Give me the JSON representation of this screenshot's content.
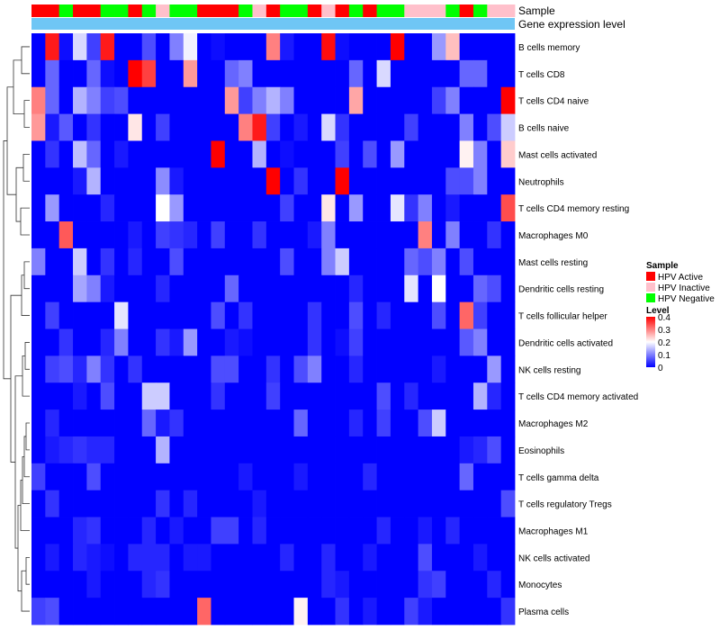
{
  "chart_data": {
    "type": "heatmap",
    "title": "",
    "annotation_tracks": [
      "Sample",
      "Gene expression level"
    ],
    "sample_groups": [
      "HPV Active",
      "HPV Active",
      "HPV Negative",
      "HPV Active",
      "HPV Active",
      "HPV Negative",
      "HPV Negative",
      "HPV Active",
      "HPV Negative",
      "HPV Inactive",
      "HPV Negative",
      "HPV Negative",
      "HPV Active",
      "HPV Active",
      "HPV Active",
      "HPV Negative",
      "HPV Inactive",
      "HPV Active",
      "HPV Negative",
      "HPV Negative",
      "HPV Active",
      "HPV Inactive",
      "HPV Active",
      "HPV Negative",
      "HPV Active",
      "HPV Negative",
      "HPV Negative",
      "HPV Inactive",
      "HPV Inactive",
      "HPV Inactive",
      "HPV Negative",
      "HPV Active",
      "HPV Negative",
      "HPV Inactive",
      "HPV Inactive"
    ],
    "rows": [
      "B cells memory",
      "T cells CD8",
      "T cells CD4 naive",
      "B cells naive",
      "Mast cells activated",
      "Neutrophils",
      "T cells CD4 memory resting",
      "Macrophages M0",
      "Mast cells resting",
      "Dendritic cells resting",
      "T cells follicular helper",
      "Dendritic cells activated",
      "NK cells resting",
      "T cells CD4 memory activated",
      "Macrophages M2",
      "Eosinophils",
      "T cells gamma delta",
      "T cells regulatory  Tregs",
      "Macrophages M1",
      "NK cells activated",
      "Monocytes",
      "Plasma cells"
    ],
    "values": [
      [
        0.0,
        0.38,
        0.01,
        0.17,
        0.05,
        0.38,
        0.0,
        0.0,
        0.06,
        0.0,
        0.1,
        0.19,
        0.0,
        0.01,
        0.0,
        0.0,
        0.0,
        0.3,
        0.02,
        0.0,
        0.0,
        0.39,
        0.01,
        0.0,
        0.0,
        0.0,
        0.4,
        0.0,
        0.0,
        0.12,
        0.25,
        0.0,
        0.0,
        0.0,
        0.0
      ],
      [
        0.0,
        0.08,
        0.0,
        0.0,
        0.08,
        0.01,
        0.0,
        0.4,
        0.35,
        0.0,
        0.0,
        0.28,
        0.0,
        0.0,
        0.08,
        0.1,
        0.0,
        0.0,
        0.0,
        0.0,
        0.0,
        0.0,
        0.0,
        0.08,
        0.0,
        0.17,
        0.0,
        0.0,
        0.0,
        0.0,
        0.0,
        0.08,
        0.08,
        0.0,
        0.0
      ],
      [
        0.3,
        0.08,
        0.0,
        0.14,
        0.1,
        0.05,
        0.06,
        0.0,
        0.0,
        0.0,
        0.0,
        0.0,
        0.0,
        0.0,
        0.28,
        0.05,
        0.1,
        0.14,
        0.1,
        0.0,
        0.0,
        0.0,
        0.0,
        0.27,
        0.0,
        0.0,
        0.0,
        0.0,
        0.0,
        0.05,
        0.1,
        0.0,
        0.0,
        0.0,
        0.4
      ],
      [
        0.28,
        0.02,
        0.07,
        0.0,
        0.04,
        0.0,
        0.0,
        0.22,
        0.0,
        0.05,
        0.0,
        0.0,
        0.0,
        0.0,
        0.0,
        0.3,
        0.38,
        0.05,
        0.0,
        0.02,
        0.0,
        0.17,
        0.04,
        0.0,
        0.0,
        0.0,
        0.0,
        0.05,
        0.0,
        0.0,
        0.0,
        0.1,
        0.0,
        0.06,
        0.16
      ],
      [
        0.0,
        0.04,
        0.0,
        0.15,
        0.08,
        0.0,
        0.02,
        0.0,
        0.0,
        0.0,
        0.0,
        0.0,
        0.0,
        0.41,
        0.0,
        0.0,
        0.14,
        0.0,
        0.01,
        0.0,
        0.0,
        0.0,
        0.05,
        0.0,
        0.06,
        0.0,
        0.12,
        0.0,
        0.0,
        0.0,
        0.0,
        0.21,
        0.1,
        0.0,
        0.24
      ],
      [
        0.0,
        0.0,
        0.0,
        0.02,
        0.14,
        0.0,
        0.0,
        0.0,
        0.0,
        0.11,
        0.02,
        0.0,
        0.0,
        0.0,
        0.0,
        0.0,
        0.0,
        0.41,
        0.0,
        0.04,
        0.0,
        0.0,
        0.42,
        0.0,
        0.0,
        0.0,
        0.0,
        0.0,
        0.0,
        0.0,
        0.06,
        0.06,
        0.1,
        0.0,
        0.0
      ],
      [
        0.0,
        0.12,
        0.0,
        0.0,
        0.0,
        0.03,
        0.0,
        0.0,
        0.0,
        0.2,
        0.12,
        0.0,
        0.0,
        0.0,
        0.0,
        0.0,
        0.0,
        0.0,
        0.05,
        0.0,
        0.0,
        0.22,
        0.0,
        0.12,
        0.0,
        0.0,
        0.18,
        0.04,
        0.1,
        0.0,
        0.02,
        0.0,
        0.0,
        0.0,
        0.34
      ],
      [
        0.0,
        0.0,
        0.33,
        0.0,
        0.0,
        0.0,
        0.0,
        0.02,
        0.0,
        0.05,
        0.04,
        0.03,
        0.0,
        0.05,
        0.0,
        0.0,
        0.04,
        0.0,
        0.0,
        0.0,
        0.02,
        0.1,
        0.0,
        0.0,
        0.0,
        0.0,
        0.0,
        0.0,
        0.3,
        0.0,
        0.1,
        0.0,
        0.0,
        0.04,
        0.0
      ],
      [
        0.1,
        0.0,
        0.0,
        0.16,
        0.0,
        0.04,
        0.0,
        0.03,
        0.0,
        0.0,
        0.06,
        0.0,
        0.0,
        0.0,
        0.0,
        0.0,
        0.0,
        0.0,
        0.06,
        0.0,
        0.0,
        0.1,
        0.16,
        0.0,
        0.0,
        0.0,
        0.0,
        0.08,
        0.06,
        0.1,
        0.0,
        0.06,
        0.0,
        0.0,
        0.0
      ],
      [
        0.0,
        0.0,
        0.0,
        0.13,
        0.1,
        0.02,
        0.0,
        0.0,
        0.0,
        0.03,
        0.0,
        0.0,
        0.0,
        0.0,
        0.08,
        0.0,
        0.0,
        0.0,
        0.0,
        0.0,
        0.0,
        0.0,
        0.0,
        0.03,
        0.0,
        0.0,
        0.0,
        0.18,
        0.0,
        0.2,
        0.0,
        0.0,
        0.08,
        0.06,
        0.0
      ],
      [
        0.0,
        0.05,
        0.0,
        0.0,
        0.0,
        0.0,
        0.18,
        0.0,
        0.0,
        0.0,
        0.0,
        0.0,
        0.0,
        0.06,
        0.0,
        0.04,
        0.0,
        0.0,
        0.0,
        0.0,
        0.04,
        0.0,
        0.0,
        0.06,
        0.0,
        0.03,
        0.0,
        0.0,
        0.0,
        0.06,
        0.0,
        0.32,
        0.05,
        0.0,
        0.0
      ],
      [
        0.0,
        0.0,
        0.04,
        0.0,
        0.0,
        0.03,
        0.1,
        0.0,
        0.0,
        0.04,
        0.02,
        0.12,
        0.0,
        0.0,
        0.02,
        0.01,
        0.0,
        0.0,
        0.0,
        0.0,
        0.04,
        0.0,
        0.01,
        0.05,
        0.0,
        0.0,
        0.0,
        0.0,
        0.0,
        0.0,
        0.0,
        0.07,
        0.1,
        0.0,
        0.0
      ],
      [
        0.0,
        0.05,
        0.06,
        0.03,
        0.1,
        0.04,
        0.0,
        0.04,
        0.0,
        0.0,
        0.0,
        0.0,
        0.0,
        0.06,
        0.06,
        0.0,
        0.0,
        0.04,
        0.0,
        0.06,
        0.1,
        0.0,
        0.0,
        0.03,
        0.0,
        0.0,
        0.0,
        0.0,
        0.0,
        0.02,
        0.0,
        0.0,
        0.0,
        0.12,
        0.0
      ],
      [
        0.0,
        0.0,
        0.0,
        0.02,
        0.0,
        0.06,
        0.0,
        0.0,
        0.16,
        0.16,
        0.0,
        0.0,
        0.0,
        0.04,
        0.0,
        0.0,
        0.0,
        0.05,
        0.0,
        0.0,
        0.0,
        0.0,
        0.0,
        0.0,
        0.0,
        0.06,
        0.0,
        0.03,
        0.0,
        0.0,
        0.0,
        0.0,
        0.14,
        0.03,
        0.0
      ],
      [
        0.0,
        0.03,
        0.0,
        0.0,
        0.0,
        0.0,
        0.0,
        0.0,
        0.08,
        0.02,
        0.04,
        0.0,
        0.0,
        0.0,
        0.0,
        0.0,
        0.0,
        0.0,
        0.0,
        0.08,
        0.0,
        0.0,
        0.0,
        0.03,
        0.0,
        0.05,
        0.0,
        0.0,
        0.06,
        0.16,
        0.0,
        0.0,
        0.0,
        0.0,
        0.0
      ],
      [
        0.0,
        0.02,
        0.03,
        0.04,
        0.03,
        0.03,
        0.0,
        0.0,
        0.0,
        0.14,
        0.0,
        0.0,
        0.0,
        0.0,
        0.0,
        0.0,
        0.0,
        0.0,
        0.0,
        0.0,
        0.0,
        0.0,
        0.0,
        0.0,
        0.0,
        0.0,
        0.0,
        0.0,
        0.0,
        0.0,
        0.0,
        0.02,
        0.03,
        0.06,
        0.0
      ],
      [
        0.05,
        0.0,
        0.0,
        0.0,
        0.06,
        0.0,
        0.0,
        0.0,
        0.0,
        0.0,
        0.0,
        0.0,
        0.0,
        0.0,
        0.0,
        0.02,
        0.0,
        0.0,
        0.0,
        0.02,
        0.0,
        0.0,
        0.0,
        0.0,
        0.03,
        0.0,
        0.0,
        0.0,
        0.0,
        0.0,
        0.0,
        0.08,
        0.0,
        0.0,
        0.0
      ],
      [
        0.0,
        0.04,
        0.0,
        0.0,
        0.0,
        0.0,
        0.0,
        0.0,
        0.0,
        0.04,
        0.0,
        0.03,
        0.0,
        0.0,
        0.0,
        0.0,
        0.02,
        0.0,
        0.0,
        0.0,
        0.0,
        0.0,
        0.0,
        0.0,
        0.0,
        0.0,
        0.0,
        0.0,
        0.0,
        0.0,
        0.0,
        0.0,
        0.0,
        0.0,
        0.06
      ],
      [
        0.0,
        0.0,
        0.0,
        0.03,
        0.04,
        0.0,
        0.0,
        0.0,
        0.03,
        0.0,
        0.02,
        0.0,
        0.0,
        0.05,
        0.05,
        0.0,
        0.03,
        0.0,
        0.0,
        0.0,
        0.0,
        0.0,
        0.0,
        0.0,
        0.0,
        0.03,
        0.0,
        0.0,
        0.02,
        0.0,
        0.03,
        0.0,
        0.0,
        0.0,
        0.0
      ],
      [
        0.0,
        0.02,
        0.0,
        0.03,
        0.02,
        0.01,
        0.0,
        0.03,
        0.03,
        0.03,
        0.0,
        0.02,
        0.02,
        0.0,
        0.0,
        0.0,
        0.0,
        0.0,
        0.03,
        0.0,
        0.0,
        0.03,
        0.0,
        0.0,
        0.02,
        0.0,
        0.0,
        0.0,
        0.06,
        0.0,
        0.0,
        0.0,
        0.02,
        0.0,
        0.0
      ],
      [
        0.0,
        0.0,
        0.0,
        0.0,
        0.02,
        0.0,
        0.0,
        0.0,
        0.03,
        0.04,
        0.0,
        0.0,
        0.0,
        0.0,
        0.0,
        0.0,
        0.0,
        0.0,
        0.0,
        0.0,
        0.0,
        0.03,
        0.02,
        0.0,
        0.0,
        0.0,
        0.0,
        0.0,
        0.04,
        0.05,
        0.0,
        0.0,
        0.0,
        0.03,
        0.0
      ],
      [
        0.05,
        0.06,
        0.0,
        0.0,
        0.0,
        0.0,
        0.0,
        0.0,
        0.0,
        0.0,
        0.0,
        0.0,
        0.32,
        0.0,
        0.0,
        0.0,
        0.0,
        0.0,
        0.0,
        0.21,
        0.0,
        0.0,
        0.04,
        0.0,
        0.02,
        0.0,
        0.0,
        0.05,
        0.02,
        0.0,
        0.0,
        0.0,
        0.0,
        0.0,
        0.04
      ]
    ],
    "dendrogram": "hierarchical clustering of rows (left)",
    "legend": {
      "sample": {
        "title": "Sample",
        "entries": [
          {
            "label": "HPV Active",
            "color": "#ff0000"
          },
          {
            "label": "HPV Inactive",
            "color": "#ffc0cb"
          },
          {
            "label": "HPV Negative",
            "color": "#00ff00"
          }
        ]
      },
      "level": {
        "title": "Level",
        "range": [
          0,
          0.4
        ],
        "ticks": [
          "0.4",
          "0.3",
          "0.2",
          "0.1",
          "0"
        ],
        "tick_values": [
          0.4,
          0.3,
          0.2,
          0.1,
          0.0
        ]
      }
    },
    "colors": {
      "low": "#0000ff",
      "mid": "#ffffff",
      "high": "#ff0000",
      "expression_track": "#6fc6f5"
    }
  }
}
